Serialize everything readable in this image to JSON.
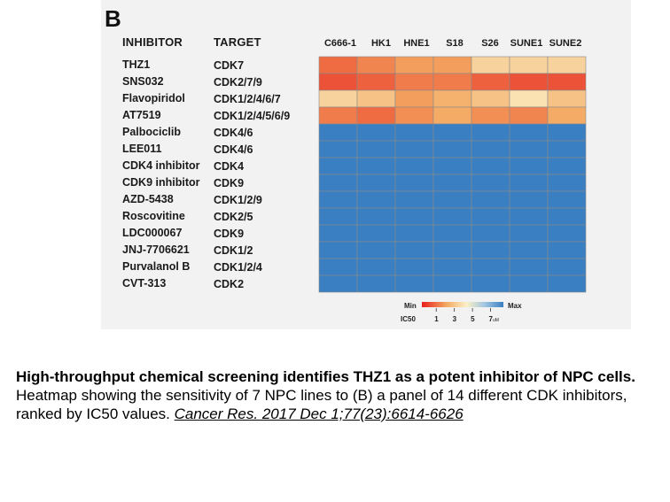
{
  "figure": {
    "panel_label": "B",
    "header_inhibitor": "INHIBITOR",
    "header_target": "TARGET"
  },
  "chart_data": {
    "type": "heatmap",
    "columns": [
      "C666-1",
      "HK1",
      "HNE1",
      "S18",
      "S26",
      "SUNE1",
      "SUNE2"
    ],
    "rows": [
      {
        "inhibitor": "THZ1",
        "target": "CDK7"
      },
      {
        "inhibitor": "SNS032",
        "target": "CDK2/7/9"
      },
      {
        "inhibitor": "Flavopiridol",
        "target": "CDK1/2/4/6/7"
      },
      {
        "inhibitor": "AT7519",
        "target": "CDK1/2/4/5/6/9"
      },
      {
        "inhibitor": "Palbociclib",
        "target": "CDK4/6"
      },
      {
        "inhibitor": "LEE011",
        "target": "CDK4/6"
      },
      {
        "inhibitor": "CDK4 inhibitor",
        "target": "CDK4"
      },
      {
        "inhibitor": "CDK9 inhibitor",
        "target": "CDK9"
      },
      {
        "inhibitor": "AZD-5438",
        "target": "CDK1/2/9"
      },
      {
        "inhibitor": "Roscovitine",
        "target": "CDK2/5"
      },
      {
        "inhibitor": "LDC000067",
        "target": "CDK9"
      },
      {
        "inhibitor": "JNJ-7706621",
        "target": "CDK1/2"
      },
      {
        "inhibitor": "Purvalanol B",
        "target": "CDK1/2/4"
      },
      {
        "inhibitor": "CVT-313",
        "target": "CDK2"
      }
    ],
    "values": [
      [
        1.5,
        2.0,
        2.5,
        2.5,
        4.0,
        4.0,
        4.0
      ],
      [
        1.0,
        1.3,
        1.8,
        1.8,
        1.3,
        1.0,
        1.0
      ],
      [
        4.0,
        3.5,
        2.5,
        3.0,
        3.5,
        4.5,
        3.5
      ],
      [
        1.8,
        1.5,
        2.2,
        2.8,
        2.2,
        2.0,
        2.8
      ],
      [
        9,
        9,
        9,
        9,
        9,
        9,
        9
      ],
      [
        9,
        9,
        9,
        9,
        9,
        9,
        9
      ],
      [
        9,
        9,
        9,
        9,
        9,
        9,
        9
      ],
      [
        9,
        9,
        9,
        9,
        9,
        9,
        9
      ],
      [
        9,
        9,
        9,
        9,
        9,
        9,
        9
      ],
      [
        9,
        9,
        9,
        9,
        9,
        9,
        9
      ],
      [
        9,
        9,
        9,
        9,
        9,
        9,
        9
      ],
      [
        9,
        9,
        9,
        9,
        9,
        9,
        9
      ],
      [
        9,
        9,
        9,
        9,
        9,
        9,
        9
      ],
      [
        9,
        9,
        9,
        9,
        9,
        9,
        9
      ]
    ],
    "value_label": "IC50",
    "unit": "uM",
    "color_scale": {
      "min_label": "Min",
      "max_label": "Max",
      "ticks": [
        1,
        3,
        5,
        7
      ],
      "domain": [
        0,
        9
      ],
      "colors": [
        "#e8201e",
        "#f4a861",
        "#fbf0c8",
        "#9cc3e0",
        "#3a7fc1"
      ]
    }
  },
  "caption": {
    "title": "High-throughput chemical screening identifies THZ1 as a potent inhibitor of NPC cells.",
    "body": "Heatmap showing the sensitivity of 7 NPC lines to (B) a panel of 14 different CDK inhibitors, ranked by IC50 values.",
    "citation": "Cancer Res. 2017 Dec 1;77(23):6614-6626"
  }
}
